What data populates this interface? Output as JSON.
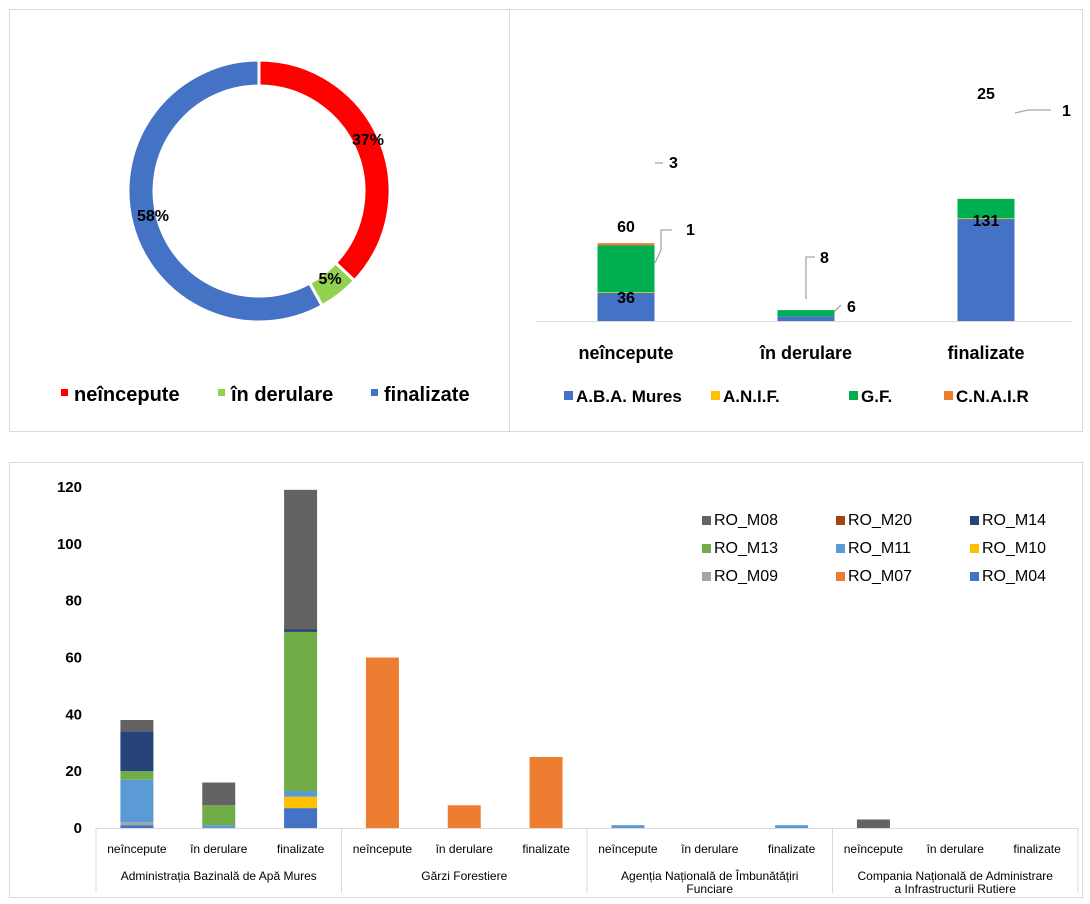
{
  "chart_data": [
    {
      "type": "pie",
      "variant": "donut",
      "slices": [
        {
          "name": "neîncepute",
          "label": "37%",
          "value": 37,
          "color": "#ff0000"
        },
        {
          "name": "în derulare",
          "label": "5%",
          "value": 5,
          "color": "#92d050"
        },
        {
          "name": "finalizate",
          "label": "58%",
          "value": 58,
          "color": "#4472c4"
        }
      ],
      "legend": {
        "placement": "bottom",
        "items": [
          "neîncepute",
          "în derulare",
          "finalizate"
        ]
      }
    },
    {
      "type": "bar",
      "stacked": true,
      "categories": [
        "neîncepute",
        "în derulare",
        "finalizate"
      ],
      "series": [
        {
          "name": "A.B.A. Mures",
          "color": "#4472c4",
          "values": [
            36,
            6,
            131
          ]
        },
        {
          "name": "A.N.I.F.",
          "color": "#ffc000",
          "values": [
            1,
            0,
            1
          ]
        },
        {
          "name": "G.F.",
          "color": "#00b050",
          "values": [
            60,
            8,
            25
          ]
        },
        {
          "name": "C.N.A.I.R",
          "color": "#ed7d31",
          "values": [
            3,
            0,
            0
          ]
        }
      ],
      "data_labels": [
        {
          "category": "neîncepute",
          "series": "A.B.A. Mures",
          "text": "36"
        },
        {
          "category": "neîncepute",
          "series": "A.N.I.F.",
          "text": "1"
        },
        {
          "category": "neîncepute",
          "series": "G.F.",
          "text": "60"
        },
        {
          "category": "neîncepute",
          "series": "C.N.A.I.R",
          "text": "3"
        },
        {
          "category": "în derulare",
          "series": "A.B.A. Mures",
          "text": "6"
        },
        {
          "category": "în derulare",
          "series": "G.F.",
          "text": "8"
        },
        {
          "category": "finalizate",
          "series": "A.B.A. Mures",
          "text": "131"
        },
        {
          "category": "finalizate",
          "series": "A.N.I.F.",
          "text": "1"
        },
        {
          "category": "finalizate",
          "series": "G.F.",
          "text": "25"
        }
      ],
      "legend": {
        "placement": "bottom"
      }
    },
    {
      "type": "bar",
      "stacked": true,
      "ylim": [
        0,
        120
      ],
      "yticks": [
        0,
        20,
        40,
        60,
        80,
        100,
        120
      ],
      "groups": [
        {
          "label": "Administrația Bazinală de Apă Mures",
          "label_lines": [
            "Administrația Bazinală de Apă Mures"
          ]
        },
        {
          "label": "Gărzi Forestiere",
          "label_lines": [
            "Gărzi Forestiere"
          ]
        },
        {
          "label": "Agenția Națională de Îmbunătățiri Funciare",
          "label_lines": [
            "Agenția Națională de Îmbunătățiri",
            "Funciare"
          ]
        },
        {
          "label": "Compania Națională de Administrare a Infrastructurii Rutiere",
          "label_lines": [
            "Compania Națională de Administrare",
            "a Infrastructurii Rutiere"
          ]
        }
      ],
      "subcategories": [
        "neîncepute",
        "în derulare",
        "finalizate"
      ],
      "series": [
        {
          "name": "RO_M04",
          "color": "#4472c4",
          "values": [
            1,
            0,
            7,
            0,
            0,
            0,
            0,
            0,
            0,
            0,
            0,
            0
          ]
        },
        {
          "name": "RO_M09",
          "color": "#a5a5a5",
          "values": [
            1,
            0,
            0,
            0,
            0,
            0,
            0,
            0,
            0,
            0,
            0,
            0
          ]
        },
        {
          "name": "RO_M10",
          "color": "#ffc000",
          "values": [
            0,
            0,
            4,
            0,
            0,
            0,
            0,
            0,
            0,
            0,
            0,
            0
          ]
        },
        {
          "name": "RO_M11",
          "color": "#5b9bd5",
          "values": [
            15,
            1,
            2,
            0,
            0,
            0,
            1,
            0,
            1,
            0,
            0,
            0
          ]
        },
        {
          "name": "RO_M13",
          "color": "#70ad47",
          "values": [
            3,
            7,
            56,
            0,
            0,
            0,
            0,
            0,
            0,
            0,
            0,
            0
          ]
        },
        {
          "name": "RO_M14",
          "color": "#264478",
          "values": [
            14,
            0,
            1,
            0,
            0,
            0,
            0,
            0,
            0,
            0,
            0,
            0
          ]
        },
        {
          "name": "RO_M20",
          "color": "#9e480e",
          "values": [
            0,
            0,
            0,
            0,
            0,
            0,
            0,
            0,
            0,
            0,
            0,
            0
          ]
        },
        {
          "name": "RO_M07",
          "color": "#ed7d31",
          "values": [
            0,
            0,
            0,
            60,
            8,
            25,
            0,
            0,
            0,
            0,
            0,
            0
          ]
        },
        {
          "name": "RO_M08",
          "color": "#636363",
          "values": [
            4,
            8,
            49,
            0,
            0,
            0,
            0,
            0,
            0,
            3,
            0,
            0
          ]
        }
      ],
      "legend": {
        "placement": "top-right",
        "order": [
          "RO_M08",
          "RO_M20",
          "RO_M14",
          "RO_M13",
          "RO_M11",
          "RO_M10",
          "RO_M09",
          "RO_M07",
          "RO_M04"
        ]
      }
    }
  ]
}
